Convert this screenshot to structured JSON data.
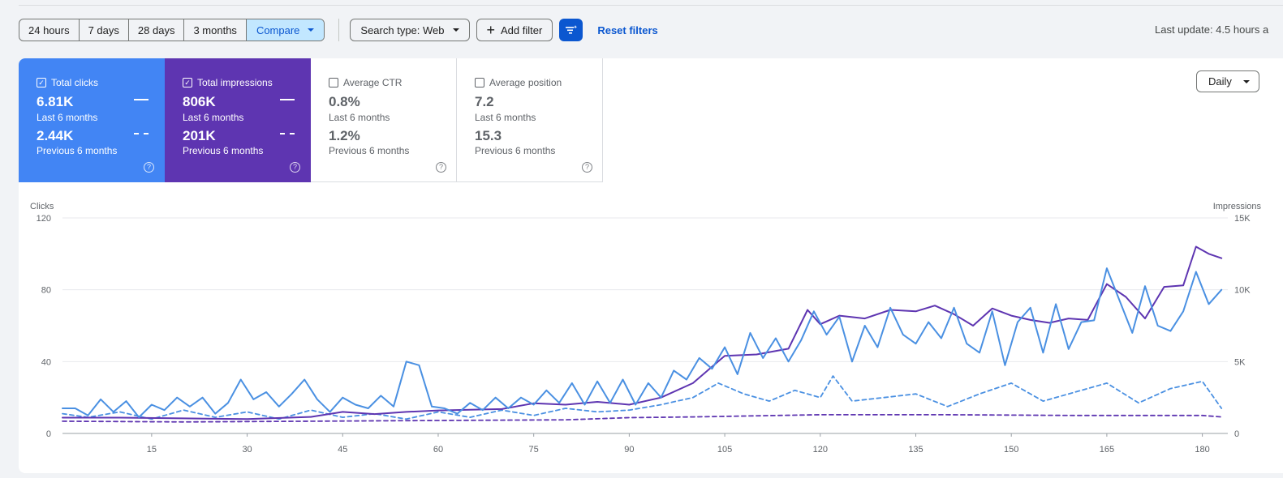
{
  "filters": {
    "ranges": [
      {
        "label": "24 hours",
        "active": false
      },
      {
        "label": "7 days",
        "active": false
      },
      {
        "label": "28 days",
        "active": false
      },
      {
        "label": "3 months",
        "active": false
      },
      {
        "label": "Compare",
        "active": true
      }
    ],
    "search_type_label": "Search type: Web",
    "add_filter_label": "Add filter",
    "reset_label": "Reset filters",
    "last_update": "Last update: 4.5 hours a"
  },
  "metrics": [
    {
      "label": "Total clicks",
      "value": "6.81K",
      "period": "Last 6 months",
      "prev_value": "2.44K",
      "prev_period": "Previous 6 months",
      "checked": true,
      "color": "#4285f4"
    },
    {
      "label": "Total impressions",
      "value": "806K",
      "period": "Last 6 months",
      "prev_value": "201K",
      "prev_period": "Previous 6 months",
      "checked": true,
      "color": "#5e35b1"
    },
    {
      "label": "Average CTR",
      "value": "0.8%",
      "period": "Last 6 months",
      "prev_value": "1.2%",
      "prev_period": "Previous 6 months",
      "checked": false
    },
    {
      "label": "Average position",
      "value": "7.2",
      "period": "Last 6 months",
      "prev_value": "15.3",
      "prev_period": "Previous 6 months",
      "checked": false
    }
  ],
  "granularity": "Daily",
  "chart_data": {
    "type": "line",
    "left_axis": {
      "label": "Clicks",
      "range": [
        0,
        120
      ],
      "ticks": [
        "0",
        "40",
        "80",
        "120"
      ]
    },
    "right_axis": {
      "label": "Impressions",
      "range": [
        0,
        15000
      ],
      "ticks": [
        "0",
        "5K",
        "10K",
        "15K"
      ]
    },
    "x_ticks": [
      "15",
      "30",
      "45",
      "60",
      "75",
      "90",
      "105",
      "120",
      "135",
      "150",
      "165",
      "180"
    ],
    "x_range": [
      1,
      184
    ],
    "grid": true,
    "series": [
      {
        "name": "Total clicks",
        "axis": "left",
        "style": "solid",
        "color": "#4a90e2",
        "key_points": [
          [
            1,
            14
          ],
          [
            3,
            14
          ],
          [
            5,
            10
          ],
          [
            7,
            19
          ],
          [
            9,
            12
          ],
          [
            11,
            18
          ],
          [
            13,
            9
          ],
          [
            15,
            16
          ],
          [
            17,
            13
          ],
          [
            19,
            20
          ],
          [
            21,
            15
          ],
          [
            23,
            20
          ],
          [
            25,
            11
          ],
          [
            27,
            17
          ],
          [
            29,
            30
          ],
          [
            31,
            19
          ],
          [
            33,
            23
          ],
          [
            35,
            15
          ],
          [
            37,
            22
          ],
          [
            39,
            30
          ],
          [
            41,
            19
          ],
          [
            43,
            12
          ],
          [
            45,
            20
          ],
          [
            47,
            16
          ],
          [
            49,
            14
          ],
          [
            51,
            21
          ],
          [
            53,
            15
          ],
          [
            55,
            40
          ],
          [
            57,
            38
          ],
          [
            59,
            15
          ],
          [
            61,
            14
          ],
          [
            63,
            11
          ],
          [
            65,
            17
          ],
          [
            67,
            13
          ],
          [
            69,
            20
          ],
          [
            71,
            14
          ],
          [
            73,
            20
          ],
          [
            75,
            16
          ],
          [
            77,
            24
          ],
          [
            79,
            17
          ],
          [
            81,
            28
          ],
          [
            83,
            16
          ],
          [
            85,
            29
          ],
          [
            87,
            17
          ],
          [
            89,
            30
          ],
          [
            91,
            16
          ],
          [
            93,
            28
          ],
          [
            95,
            20
          ],
          [
            97,
            35
          ],
          [
            99,
            30
          ],
          [
            101,
            42
          ],
          [
            103,
            36
          ],
          [
            105,
            48
          ],
          [
            107,
            33
          ],
          [
            109,
            56
          ],
          [
            111,
            42
          ],
          [
            113,
            53
          ],
          [
            115,
            40
          ],
          [
            117,
            52
          ],
          [
            119,
            68
          ],
          [
            121,
            55
          ],
          [
            123,
            65
          ],
          [
            125,
            40
          ],
          [
            127,
            60
          ],
          [
            129,
            48
          ],
          [
            131,
            70
          ],
          [
            133,
            55
          ],
          [
            135,
            50
          ],
          [
            137,
            62
          ],
          [
            139,
            53
          ],
          [
            141,
            70
          ],
          [
            143,
            50
          ],
          [
            145,
            45
          ],
          [
            147,
            68
          ],
          [
            149,
            38
          ],
          [
            151,
            62
          ],
          [
            153,
            70
          ],
          [
            155,
            45
          ],
          [
            157,
            72
          ],
          [
            159,
            47
          ],
          [
            161,
            62
          ],
          [
            163,
            63
          ],
          [
            165,
            92
          ],
          [
            167,
            74
          ],
          [
            169,
            56
          ],
          [
            171,
            82
          ],
          [
            173,
            60
          ],
          [
            175,
            57
          ],
          [
            177,
            68
          ],
          [
            179,
            90
          ],
          [
            181,
            72
          ],
          [
            183,
            80
          ]
        ]
      },
      {
        "name": "Total impressions",
        "axis": "right",
        "style": "solid",
        "color": "#5e35b1",
        "key_points": [
          [
            1,
            1100
          ],
          [
            10,
            1100
          ],
          [
            20,
            1050
          ],
          [
            30,
            1000
          ],
          [
            40,
            1150
          ],
          [
            45,
            1500
          ],
          [
            50,
            1350
          ],
          [
            55,
            1500
          ],
          [
            60,
            1600
          ],
          [
            65,
            1650
          ],
          [
            70,
            1700
          ],
          [
            75,
            2100
          ],
          [
            80,
            2000
          ],
          [
            85,
            2200
          ],
          [
            90,
            2000
          ],
          [
            95,
            2500
          ],
          [
            100,
            3500
          ],
          [
            105,
            5400
          ],
          [
            110,
            5500
          ],
          [
            115,
            5900
          ],
          [
            118,
            8600
          ],
          [
            120,
            7600
          ],
          [
            123,
            8200
          ],
          [
            127,
            8000
          ],
          [
            131,
            8600
          ],
          [
            135,
            8500
          ],
          [
            138,
            8900
          ],
          [
            141,
            8300
          ],
          [
            144,
            7500
          ],
          [
            147,
            8700
          ],
          [
            150,
            8200
          ],
          [
            153,
            7900
          ],
          [
            156,
            7700
          ],
          [
            159,
            8000
          ],
          [
            162,
            7900
          ],
          [
            165,
            10400
          ],
          [
            168,
            9500
          ],
          [
            171,
            8000
          ],
          [
            174,
            10200
          ],
          [
            177,
            10300
          ],
          [
            179,
            13000
          ],
          [
            181,
            12500
          ],
          [
            183,
            12200
          ]
        ]
      },
      {
        "name": "Previous clicks",
        "axis": "left",
        "style": "dashed",
        "color": "#4a90e2",
        "key_points": [
          [
            1,
            11
          ],
          [
            5,
            9
          ],
          [
            10,
            12
          ],
          [
            15,
            8
          ],
          [
            20,
            13
          ],
          [
            25,
            9
          ],
          [
            30,
            12
          ],
          [
            35,
            8
          ],
          [
            40,
            13
          ],
          [
            45,
            9
          ],
          [
            50,
            11
          ],
          [
            55,
            8
          ],
          [
            60,
            12
          ],
          [
            65,
            9
          ],
          [
            70,
            13
          ],
          [
            75,
            10
          ],
          [
            80,
            14
          ],
          [
            85,
            12
          ],
          [
            90,
            13
          ],
          [
            95,
            16
          ],
          [
            100,
            20
          ],
          [
            104,
            28
          ],
          [
            108,
            22
          ],
          [
            112,
            18
          ],
          [
            116,
            24
          ],
          [
            120,
            20
          ],
          [
            122,
            32
          ],
          [
            125,
            18
          ],
          [
            130,
            20
          ],
          [
            135,
            22
          ],
          [
            140,
            15
          ],
          [
            145,
            22
          ],
          [
            150,
            28
          ],
          [
            155,
            18
          ],
          [
            160,
            23
          ],
          [
            165,
            28
          ],
          [
            170,
            17
          ],
          [
            175,
            25
          ],
          [
            180,
            29
          ],
          [
            183,
            14
          ]
        ]
      },
      {
        "name": "Previous impressions",
        "axis": "right",
        "style": "dashed",
        "color": "#5e35b1",
        "key_points": [
          [
            1,
            850
          ],
          [
            20,
            800
          ],
          [
            40,
            850
          ],
          [
            60,
            900
          ],
          [
            80,
            950
          ],
          [
            90,
            1100
          ],
          [
            100,
            1150
          ],
          [
            120,
            1300
          ],
          [
            140,
            1300
          ],
          [
            160,
            1250
          ],
          [
            180,
            1250
          ],
          [
            183,
            1150
          ]
        ]
      }
    ]
  }
}
